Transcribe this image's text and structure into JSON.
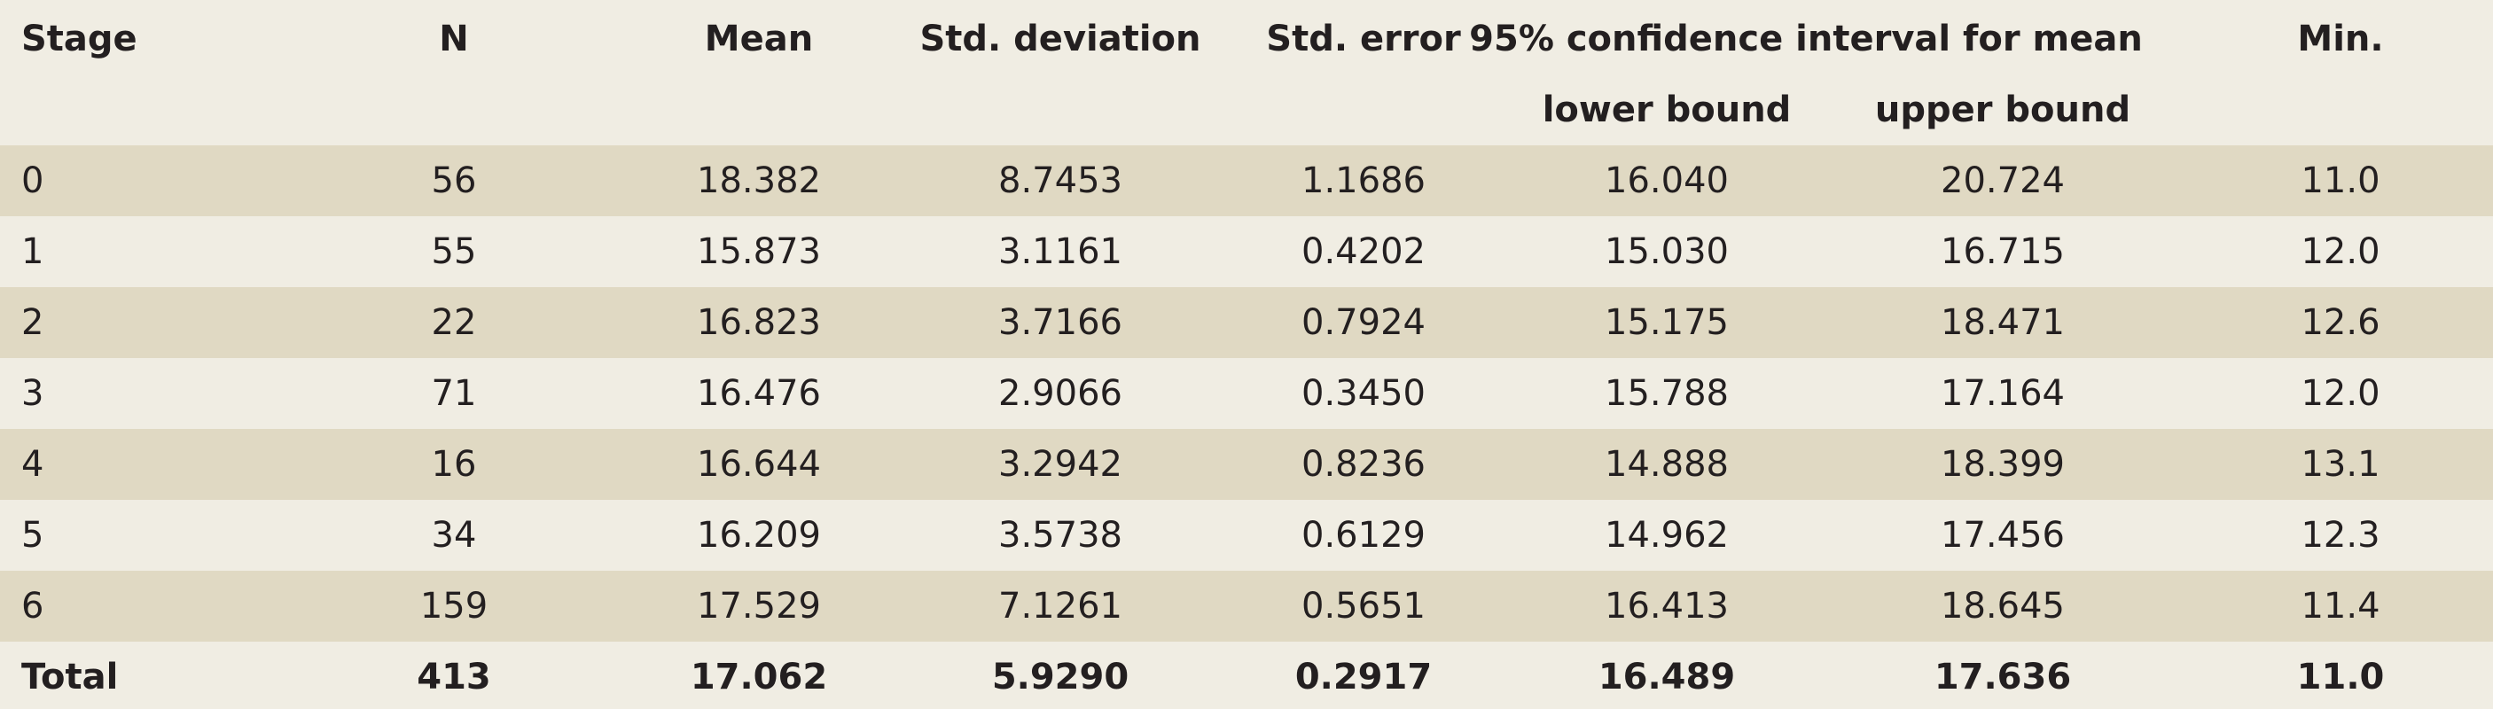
{
  "header": {
    "stage": "Stage",
    "n": "N",
    "mean": "Mean",
    "sd": "Std. deviation",
    "se": "Std. error",
    "ci": "95% confidence interval for mean",
    "lower": "lower bound",
    "upper": "upper bound",
    "min": "Min."
  },
  "rows": [
    {
      "stage": "0",
      "n": "56",
      "mean": "18.382",
      "sd": "8.7453",
      "se": "1.1686",
      "lower": "16.040",
      "upper": "20.724",
      "min": "11.0"
    },
    {
      "stage": "1",
      "n": "55",
      "mean": "15.873",
      "sd": "3.1161",
      "se": "0.4202",
      "lower": "15.030",
      "upper": "16.715",
      "min": "12.0"
    },
    {
      "stage": "2",
      "n": "22",
      "mean": "16.823",
      "sd": "3.7166",
      "se": "0.7924",
      "lower": "15.175",
      "upper": "18.471",
      "min": "12.6"
    },
    {
      "stage": "3",
      "n": "71",
      "mean": "16.476",
      "sd": "2.9066",
      "se": "0.3450",
      "lower": "15.788",
      "upper": "17.164",
      "min": "12.0"
    },
    {
      "stage": "4",
      "n": "16",
      "mean": "16.644",
      "sd": "3.2942",
      "se": "0.8236",
      "lower": "14.888",
      "upper": "18.399",
      "min": "13.1"
    },
    {
      "stage": "5",
      "n": "34",
      "mean": "16.209",
      "sd": "3.5738",
      "se": "0.6129",
      "lower": "14.962",
      "upper": "17.456",
      "min": "12.3"
    },
    {
      "stage": "6",
      "n": "159",
      "mean": "17.529",
      "sd": "7.1261",
      "se": "0.5651",
      "lower": "16.413",
      "upper": "18.645",
      "min": "11.4"
    }
  ],
  "total": {
    "stage": "Total",
    "n": "413",
    "mean": "17.062",
    "sd": "5.9290",
    "se": "0.2917",
    "lower": "16.489",
    "upper": "17.636",
    "min": "11.0"
  },
  "colors": {
    "background": "#f0ede3",
    "band": "#e0d9c3",
    "text": "#231f20"
  }
}
